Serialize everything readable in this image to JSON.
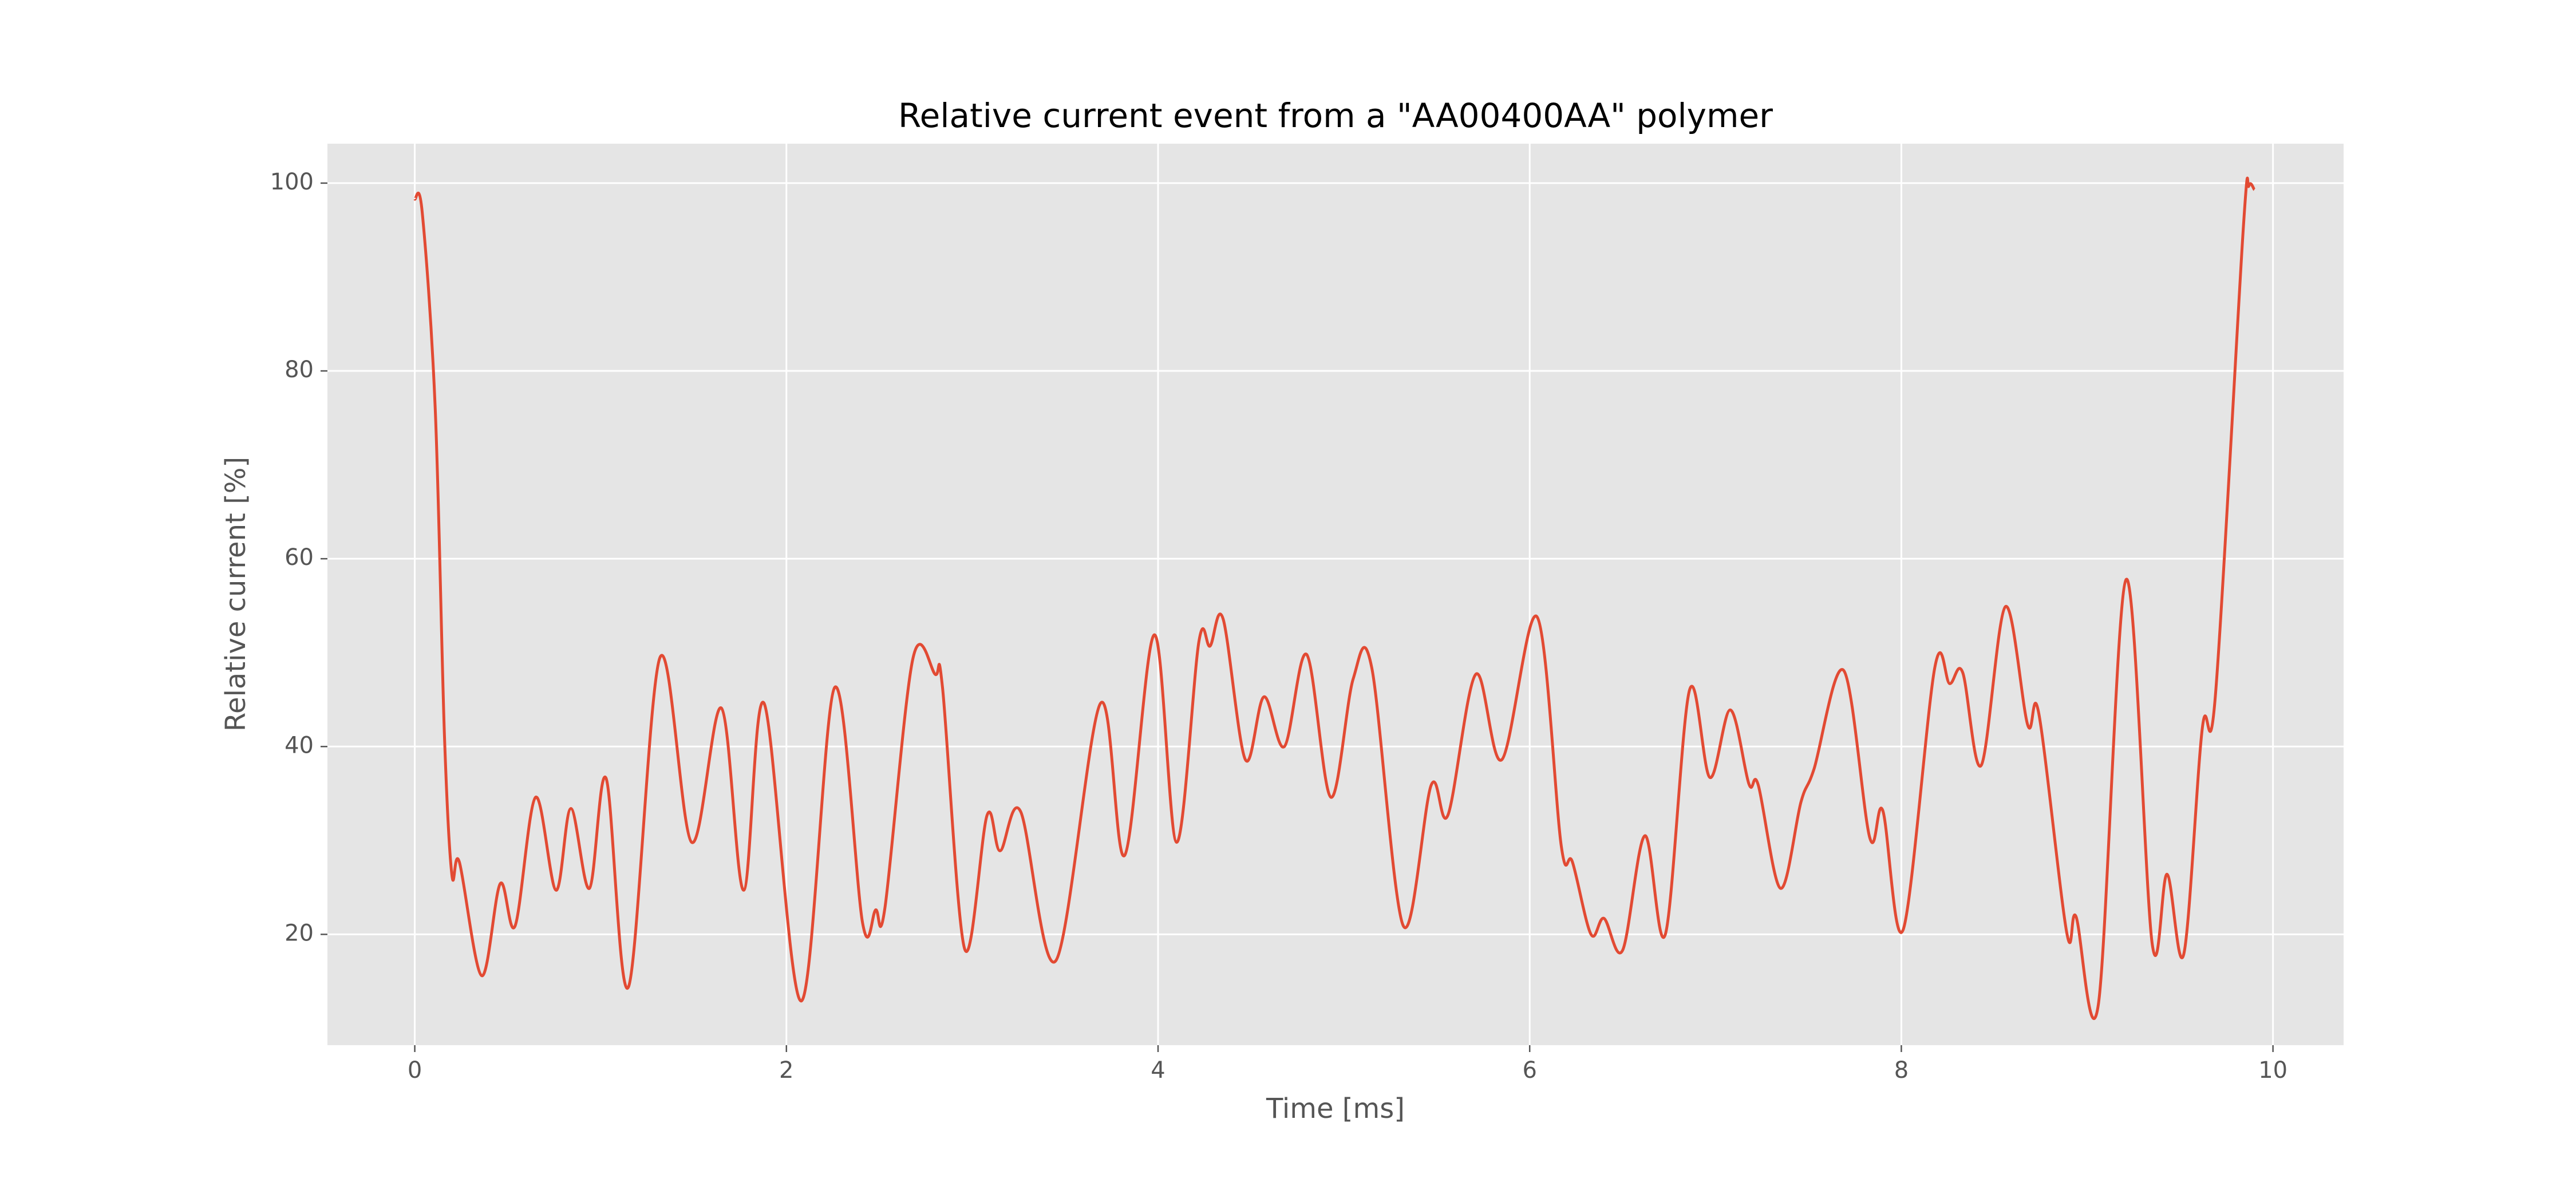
{
  "chart_data": {
    "type": "line",
    "title": "Relative current event from a \"AA00400AA\" polymer",
    "x_label": "Time [ms]",
    "y_label": "Relative current [%]",
    "x": [
      0.0,
      0.04,
      0.11,
      0.16,
      0.2,
      0.24,
      0.36,
      0.46,
      0.54,
      0.65,
      0.76,
      0.84,
      0.94,
      1.03,
      1.15,
      1.32,
      1.49,
      1.65,
      1.77,
      1.88,
      2.08,
      2.26,
      2.41,
      2.48,
      2.53,
      2.68,
      2.8,
      2.84,
      2.96,
      3.08,
      3.15,
      3.26,
      3.45,
      3.69,
      3.82,
      3.98,
      4.1,
      4.22,
      4.28,
      4.35,
      4.47,
      4.57,
      4.68,
      4.8,
      4.93,
      5.05,
      5.15,
      5.32,
      5.47,
      5.56,
      5.71,
      5.85,
      6.04,
      6.17,
      6.23,
      6.33,
      6.4,
      6.5,
      6.62,
      6.73,
      6.86,
      6.97,
      7.08,
      7.18,
      7.23,
      7.35,
      7.46,
      7.53,
      7.69,
      7.83,
      7.9,
      8.01,
      8.18,
      8.26,
      8.33,
      8.43,
      8.56,
      8.68,
      8.74,
      8.89,
      8.94,
      9.06,
      9.21,
      9.35,
      9.43,
      9.52,
      9.62,
      9.69,
      9.84,
      9.87,
      9.9
    ],
    "series": [
      {
        "name": "Relative current",
        "color": "#e24a33",
        "values": [
          98.3,
          96.9,
          76,
          41,
          26.3,
          27.7,
          15.6,
          25.4,
          20.9,
          34.6,
          24.7,
          33.4,
          24.9,
          36.6,
          14.4,
          49.5,
          29.8,
          44.1,
          24.7,
          44.6,
          12.9,
          46.3,
          21.2,
          22.6,
          22.8,
          49.3,
          47.7,
          46.3,
          18.4,
          32.7,
          28.9,
          33.1,
          17.2,
          44.6,
          28.4,
          51.9,
          29.8,
          51.2,
          50.7,
          53.6,
          38.6,
          45.3,
          40,
          49.8,
          34.6,
          47.2,
          48.4,
          20.9,
          35.9,
          32.7,
          47.7,
          38.6,
          53.8,
          29.4,
          27.7,
          20,
          21.7,
          18.3,
          30.5,
          20,
          46,
          36.7,
          43.9,
          36,
          35.9,
          24.9,
          34.1,
          37.6,
          48.1,
          30.3,
          33.2,
          20.5,
          48.4,
          46.7,
          47.9,
          38,
          54.9,
          42.3,
          43.5,
          20.2,
          21.9,
          12.5,
          57.8,
          19,
          26.4,
          17.9,
          42,
          45.4,
          95.1,
          99.7,
          99.3
        ]
      }
    ],
    "xlim": [
      -0.47,
      10.38
    ],
    "ylim": [
      8.2,
      104.2
    ],
    "xticks": [
      0,
      2,
      4,
      6,
      8,
      10
    ],
    "yticks": [
      20,
      40,
      60,
      80,
      100
    ],
    "grid": true,
    "background": "#e5e5e5"
  }
}
